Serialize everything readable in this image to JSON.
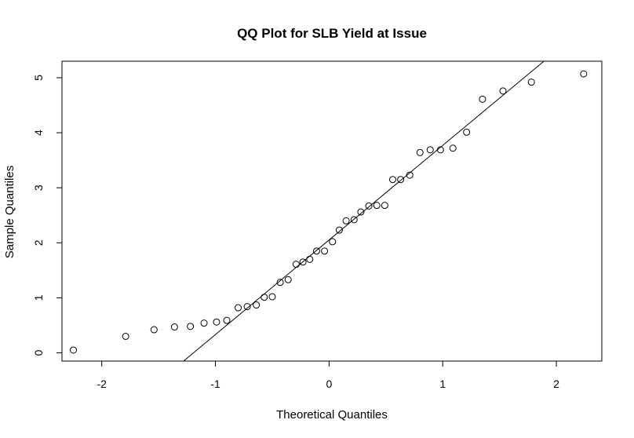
{
  "chart_data": {
    "type": "scatter",
    "title": "QQ Plot for SLB Yield at Issue",
    "xlabel": "Theoretical Quantiles",
    "ylabel": "Sample Quantiles",
    "xlim": [
      -2.35,
      2.4
    ],
    "ylim": [
      -0.15,
      5.3
    ],
    "xticks": [
      "-2",
      "-1",
      "0",
      "1",
      "2"
    ],
    "yticks": [
      "0",
      "1",
      "2",
      "3",
      "4",
      "5"
    ],
    "grid": false,
    "legend": "none",
    "colors": {
      "points": "#000000",
      "line": "#000000",
      "background": "#ffffff"
    },
    "reference_line": {
      "x1": -1.28,
      "y1": -0.15,
      "x2": 1.89,
      "y2": 5.3
    },
    "points": [
      {
        "x": -2.25,
        "y": 0.05
      },
      {
        "x": -1.79,
        "y": 0.3
      },
      {
        "x": -1.54,
        "y": 0.42
      },
      {
        "x": -1.36,
        "y": 0.47
      },
      {
        "x": -1.22,
        "y": 0.48
      },
      {
        "x": -1.1,
        "y": 0.54
      },
      {
        "x": -0.99,
        "y": 0.56
      },
      {
        "x": -0.9,
        "y": 0.59
      },
      {
        "x": -0.8,
        "y": 0.82
      },
      {
        "x": -0.72,
        "y": 0.84
      },
      {
        "x": -0.64,
        "y": 0.87
      },
      {
        "x": -0.57,
        "y": 1.01
      },
      {
        "x": -0.5,
        "y": 1.02
      },
      {
        "x": -0.43,
        "y": 1.28
      },
      {
        "x": -0.36,
        "y": 1.33
      },
      {
        "x": -0.29,
        "y": 1.61
      },
      {
        "x": -0.23,
        "y": 1.65
      },
      {
        "x": -0.17,
        "y": 1.7
      },
      {
        "x": -0.11,
        "y": 1.85
      },
      {
        "x": -0.04,
        "y": 1.85
      },
      {
        "x": 0.03,
        "y": 2.02
      },
      {
        "x": 0.09,
        "y": 2.23
      },
      {
        "x": 0.15,
        "y": 2.4
      },
      {
        "x": 0.22,
        "y": 2.42
      },
      {
        "x": 0.28,
        "y": 2.56
      },
      {
        "x": 0.35,
        "y": 2.67
      },
      {
        "x": 0.42,
        "y": 2.68
      },
      {
        "x": 0.49,
        "y": 2.68
      },
      {
        "x": 0.56,
        "y": 3.15
      },
      {
        "x": 0.63,
        "y": 3.15
      },
      {
        "x": 0.71,
        "y": 3.23
      },
      {
        "x": 0.8,
        "y": 3.64
      },
      {
        "x": 0.89,
        "y": 3.69
      },
      {
        "x": 0.98,
        "y": 3.69
      },
      {
        "x": 1.09,
        "y": 3.72
      },
      {
        "x": 1.21,
        "y": 4.01
      },
      {
        "x": 1.35,
        "y": 4.61
      },
      {
        "x": 1.53,
        "y": 4.76
      },
      {
        "x": 1.78,
        "y": 4.92
      },
      {
        "x": 2.24,
        "y": 5.07
      }
    ]
  }
}
